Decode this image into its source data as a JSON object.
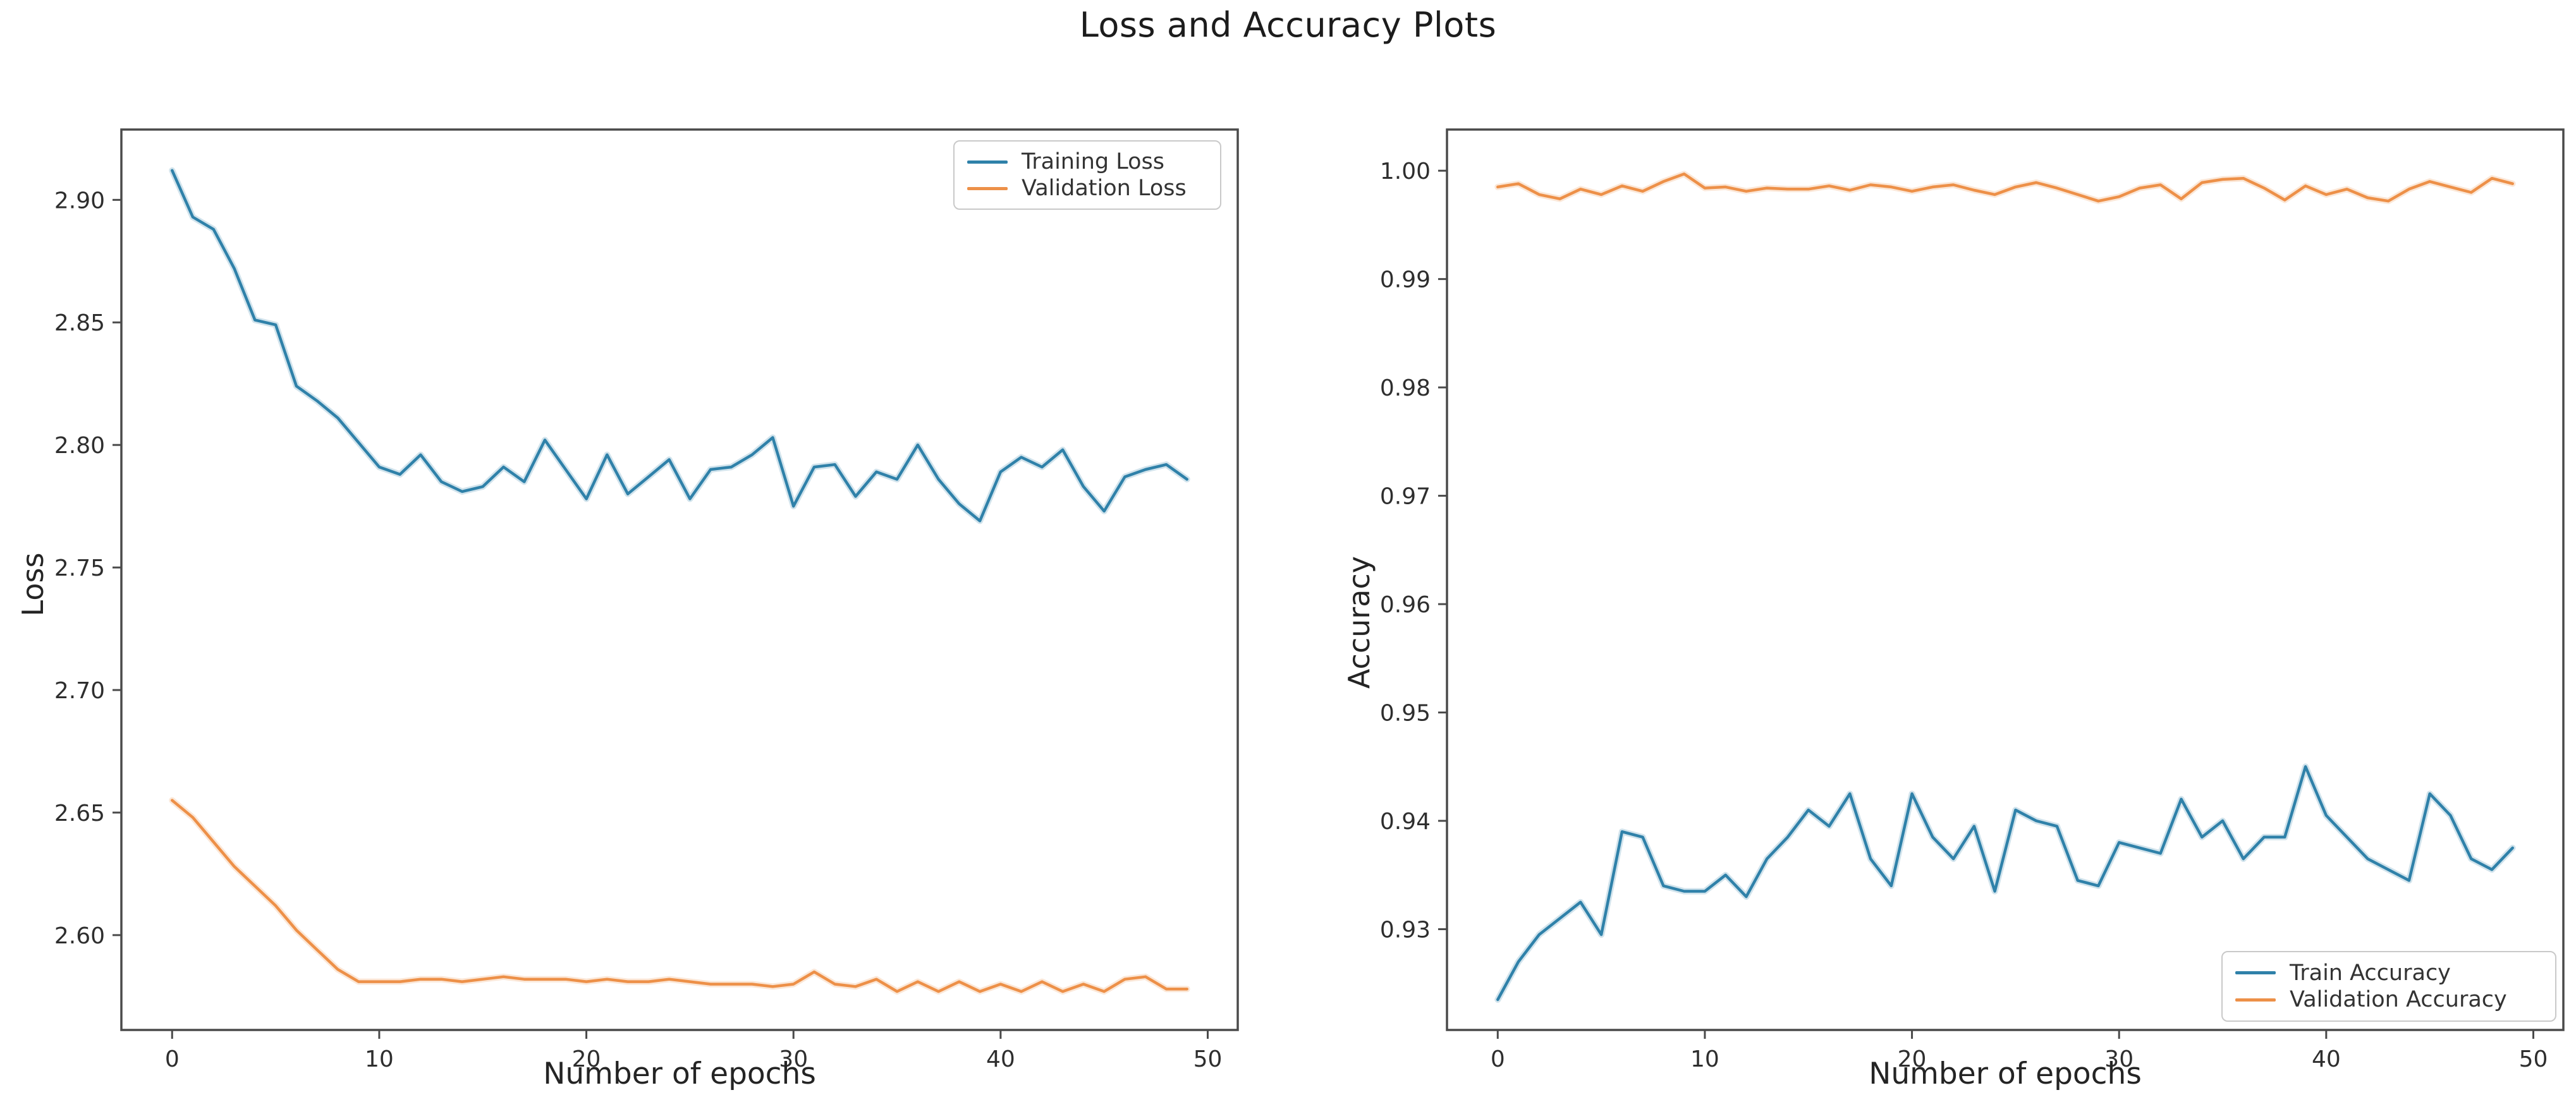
{
  "figure": {
    "title": "Loss and Accuracy Plots",
    "background_color": "#ffffff",
    "text_color": "#1f1f1f",
    "spine_color": "#4a4a4a",
    "tick_label_color": "#2e2e2e",
    "blue_color": "#2f81a9",
    "orange_color": "#ed9048"
  },
  "chart_data": [
    {
      "type": "line",
      "name": "loss-plot",
      "title": "",
      "xlabel": "Number of epochs",
      "ylabel": "Loss",
      "x_range": [
        -2.45,
        51.45
      ],
      "y_range": [
        2.5613,
        2.9287
      ],
      "xtick_labels": [
        "0",
        "10",
        "20",
        "30",
        "40",
        "50"
      ],
      "ytick_labels": [
        "2.60",
        "2.65",
        "2.70",
        "2.75",
        "2.80",
        "2.85",
        "2.90"
      ],
      "grid": false,
      "legend_position": "upper right",
      "series": [
        {
          "name": "Training Loss",
          "color": "#2f81a9",
          "x_start": 0,
          "values": [
            2.912,
            2.893,
            2.888,
            2.872,
            2.851,
            2.849,
            2.824,
            2.818,
            2.811,
            2.801,
            2.791,
            2.788,
            2.796,
            2.785,
            2.781,
            2.783,
            2.791,
            2.785,
            2.802,
            2.79,
            2.778,
            2.796,
            2.78,
            2.787,
            2.794,
            2.778,
            2.79,
            2.791,
            2.796,
            2.803,
            2.775,
            2.791,
            2.792,
            2.779,
            2.789,
            2.786,
            2.8,
            2.786,
            2.776,
            2.769,
            2.789,
            2.795,
            2.791,
            2.798,
            2.783,
            2.773,
            2.787,
            2.79,
            2.792,
            2.786
          ]
        },
        {
          "name": "Validation Loss",
          "color": "#ed9048",
          "x_start": 0,
          "values": [
            2.655,
            2.648,
            2.638,
            2.628,
            2.62,
            2.612,
            2.602,
            2.594,
            2.586,
            2.581,
            2.581,
            2.581,
            2.582,
            2.582,
            2.581,
            2.582,
            2.583,
            2.582,
            2.582,
            2.582,
            2.581,
            2.582,
            2.581,
            2.581,
            2.582,
            2.581,
            2.58,
            2.58,
            2.58,
            2.579,
            2.58,
            2.585,
            2.58,
            2.579,
            2.582,
            2.577,
            2.581,
            2.577,
            2.581,
            2.577,
            2.58,
            2.577,
            2.581,
            2.577,
            2.58,
            2.577,
            2.582,
            2.583,
            2.578,
            2.578
          ]
        }
      ]
    },
    {
      "type": "line",
      "name": "accuracy-plot",
      "title": "",
      "xlabel": "Number of epochs",
      "ylabel": "Accuracy",
      "x_range": [
        -2.45,
        51.45
      ],
      "y_range": [
        0.9207,
        1.0038
      ],
      "xtick_labels": [
        "0",
        "10",
        "20",
        "30",
        "40",
        "50"
      ],
      "ytick_labels": [
        "0.93",
        "0.94",
        "0.95",
        "0.96",
        "0.97",
        "0.98",
        "0.99",
        "1.00"
      ],
      "grid": false,
      "legend_position": "lower right",
      "series": [
        {
          "name": "Train Accuracy",
          "color": "#2f81a9",
          "x_start": 0,
          "values": [
            0.9235,
            0.927,
            0.9295,
            0.931,
            0.9325,
            0.9295,
            0.939,
            0.9385,
            0.934,
            0.9335,
            0.9335,
            0.935,
            0.933,
            0.9365,
            0.9385,
            0.941,
            0.9395,
            0.9425,
            0.9365,
            0.934,
            0.9425,
            0.9385,
            0.9365,
            0.9395,
            0.9335,
            0.941,
            0.94,
            0.9395,
            0.9345,
            0.934,
            0.938,
            0.9375,
            0.937,
            0.942,
            0.9385,
            0.94,
            0.9365,
            0.9385,
            0.9385,
            0.945,
            0.9405,
            0.9385,
            0.9365,
            0.9355,
            0.9345,
            0.9425,
            0.9405,
            0.9365,
            0.9355,
            0.9375
          ]
        },
        {
          "name": "Validation Accuracy",
          "color": "#ed9048",
          "x_start": 0,
          "values": [
            0.9985,
            0.9988,
            0.9978,
            0.9974,
            0.9983,
            0.9978,
            0.9986,
            0.9981,
            0.999,
            0.9997,
            0.9984,
            0.9985,
            0.9981,
            0.9984,
            0.9983,
            0.9983,
            0.9986,
            0.9982,
            0.9987,
            0.9985,
            0.9981,
            0.9985,
            0.9987,
            0.9982,
            0.9978,
            0.9985,
            0.9989,
            0.9984,
            0.9978,
            0.9972,
            0.9976,
            0.9984,
            0.9987,
            0.9974,
            0.9989,
            0.9992,
            0.9993,
            0.9984,
            0.9973,
            0.9986,
            0.9978,
            0.9983,
            0.9975,
            0.9972,
            0.9983,
            0.999,
            0.9985,
            0.998,
            0.9993,
            0.9988
          ]
        }
      ]
    }
  ]
}
